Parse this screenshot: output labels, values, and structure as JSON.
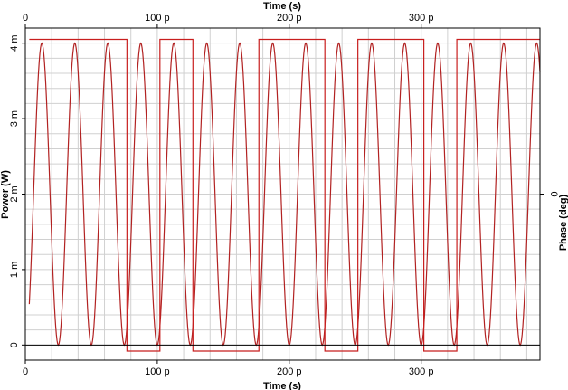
{
  "chart_data": {
    "type": "line",
    "title": "",
    "xlabel": "Time (s)",
    "top_xlabel": "Time (s)",
    "ylabel": "Power (W)",
    "ylabel_right": "Phase (deg)",
    "xlim": [
      0,
      390
    ],
    "ylim": [
      -0.0002,
      0.0042
    ],
    "x_ticks": [
      {
        "value": 0,
        "label": "0"
      },
      {
        "value": 100,
        "label": "100 p"
      },
      {
        "value": 200,
        "label": "200 p"
      },
      {
        "value": 300,
        "label": "300 p"
      }
    ],
    "y_ticks": [
      {
        "value": 0,
        "label": "0"
      },
      {
        "value": 0.001,
        "label": "1 m"
      },
      {
        "value": 0.002,
        "label": "2 m"
      },
      {
        "value": 0.003,
        "label": "3 m"
      },
      {
        "value": 0.004,
        "label": "4 m"
      }
    ],
    "y_ticks_right": [
      {
        "value": 0.002,
        "label": "0"
      }
    ],
    "grid": true,
    "colors": {
      "power": "#b22222",
      "phase": "#c81e1e",
      "grid": "#d0d0d0",
      "axis": "#000000"
    },
    "series": [
      {
        "name": "",
        "axis": "left",
        "peaks": [
          0,
          25,
          50,
          75,
          100,
          125,
          150,
          175,
          200,
          225,
          250,
          275,
          300,
          325,
          350,
          375
        ],
        "peak_value": 0.004,
        "period": 25,
        "x_start": 3,
        "x_end": 390
      },
      {
        "name": "",
        "axis": "right",
        "levels": [
          {
            "x_start": 3,
            "x_end": 77,
            "y": 0.00405
          },
          {
            "x_start": 77,
            "x_end": 102,
            "y": -8e-05
          },
          {
            "x_start": 102,
            "x_end": 127,
            "y": 0.00405
          },
          {
            "x_start": 127,
            "x_end": 177,
            "y": -8e-05
          },
          {
            "x_start": 177,
            "x_end": 227,
            "y": 0.00405
          },
          {
            "x_start": 227,
            "x_end": 252,
            "y": -8e-05
          },
          {
            "x_start": 252,
            "x_end": 302,
            "y": 0.00405
          },
          {
            "x_start": 302,
            "x_end": 327,
            "y": -8e-05
          },
          {
            "x_start": 327,
            "x_end": 390,
            "y": 0.00405
          }
        ]
      }
    ]
  }
}
